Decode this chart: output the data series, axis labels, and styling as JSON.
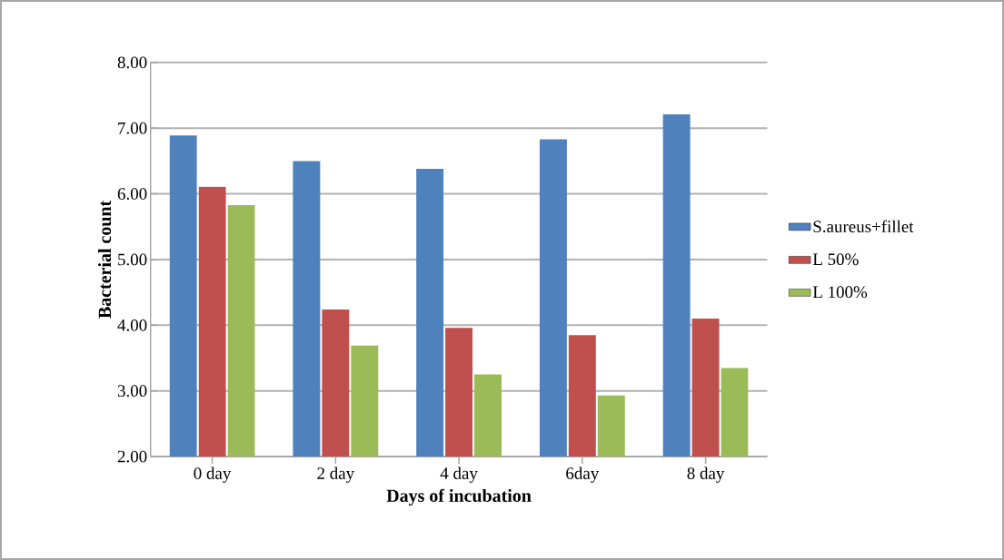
{
  "chart_data": {
    "type": "bar",
    "xlabel": "Days of incubation",
    "ylabel": "Bacterial count",
    "categories": [
      "0 day",
      "2 day",
      "4 day",
      "6day",
      "8 day"
    ],
    "series": [
      {
        "name": "S.aureus+fillet",
        "color": "#4f81bd",
        "values": [
          6.89,
          6.5,
          6.38,
          6.83,
          7.21
        ]
      },
      {
        "name": "L  50%",
        "color": "#c0504d",
        "values": [
          6.11,
          4.24,
          3.96,
          3.85,
          4.1
        ]
      },
      {
        "name": "L  100%",
        "color": "#9bbb59",
        "values": [
          5.83,
          3.69,
          3.25,
          2.93,
          3.35
        ]
      }
    ],
    "ylim": [
      2,
      8
    ],
    "yticks": [
      {
        "value": 2,
        "label": "2.00"
      },
      {
        "value": 3,
        "label": "3.00"
      },
      {
        "value": 4,
        "label": "4.00"
      },
      {
        "value": 5,
        "label": "5.00"
      },
      {
        "value": 6,
        "label": "6.00"
      },
      {
        "value": 7,
        "label": "7.00"
      },
      {
        "value": 8,
        "label": "8.00"
      }
    ],
    "grid": "y",
    "legend": "right"
  }
}
